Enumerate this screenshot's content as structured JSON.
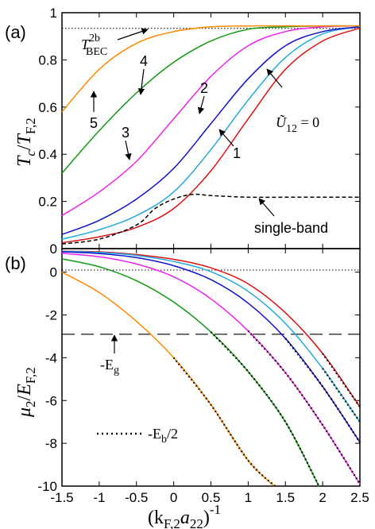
{
  "figure": {
    "panel_a_label": "(a)",
    "panel_b_label": "(b)",
    "ylabel_a_main": "T",
    "ylabel_a_sub1": "c",
    "ylabel_a_slash": "/",
    "ylabel_a_main2": "T",
    "ylabel_a_sub2": "F,2",
    "ylabel_b_main": "μ",
    "ylabel_b_sub1": "2",
    "ylabel_b_slash": "/",
    "ylabel_b_main2": "E",
    "ylabel_b_sub2": "F,2",
    "xlabel_open": "(k",
    "xlabel_sub1": "F,2",
    "xlabel_mid": "a",
    "xlabel_sub2": "22",
    "xlabel_close": ")",
    "xlabel_sup": "-1",
    "annot_tbec_main": "T",
    "annot_tbec_sup": "2b",
    "annot_tbec_sub": "BEC",
    "annot_u12_sym": "Ũ",
    "annot_u12_sub": "12",
    "annot_u12_eq": " = 0",
    "annot_singleband": "single-band",
    "annot_eg": "-E",
    "annot_eg_sub": "g",
    "annot_eb": "-E",
    "annot_eb_sub": "b",
    "annot_eb_tail": "/2",
    "curve_labels": [
      "1",
      "2",
      "3",
      "4",
      "5"
    ]
  },
  "colors": {
    "c0": "#dd1111",
    "c1": "#22aadd",
    "c2": "#1111cc",
    "c3": "#ee22ee",
    "c4": "#119911",
    "c5": "#ff8800",
    "singleband": "#000000"
  },
  "chart_data": [
    {
      "panel": "(a)",
      "type": "line",
      "ylabel": "Tc/TF,2",
      "xlim": [
        -1.5,
        2.5
      ],
      "ylim": [
        0,
        1
      ],
      "xticks": [
        "-1.5",
        "-1",
        "-0.5",
        "0",
        "0.5",
        "1",
        "1.5",
        "2",
        "2.5"
      ],
      "yticks": [
        "0",
        "0.2",
        "0.4",
        "0.6",
        "0.8",
        "1"
      ],
      "reference_line": {
        "label": "T2bBEC",
        "y": 0.944
      },
      "series": [
        {
          "name": "Ũ12 = 0",
          "color_key": "c0",
          "x": [
            -1.5,
            -1,
            -0.5,
            0,
            0.5,
            1,
            1.5,
            2,
            2.5
          ],
          "y": [
            0.025,
            0.05,
            0.09,
            0.17,
            0.33,
            0.55,
            0.76,
            0.88,
            0.935
          ]
        },
        {
          "name": "1",
          "color_key": "c1",
          "x": [
            -1.5,
            -1,
            -0.5,
            0,
            0.5,
            1,
            1.5,
            2,
            2.5
          ],
          "y": [
            0.04,
            0.08,
            0.14,
            0.24,
            0.42,
            0.63,
            0.81,
            0.91,
            0.94
          ]
        },
        {
          "name": "2",
          "color_key": "c2",
          "x": [
            -1.5,
            -1,
            -0.5,
            0,
            0.5,
            1,
            1.5,
            2,
            2.5
          ],
          "y": [
            0.06,
            0.12,
            0.21,
            0.34,
            0.53,
            0.72,
            0.86,
            0.92,
            0.94
          ]
        },
        {
          "name": "3",
          "color_key": "c3",
          "x": [
            -1.5,
            -1,
            -0.5,
            0,
            0.5,
            1,
            1.5,
            2,
            2.5
          ],
          "y": [
            0.14,
            0.24,
            0.37,
            0.55,
            0.73,
            0.86,
            0.92,
            0.94,
            0.944
          ]
        },
        {
          "name": "4",
          "color_key": "c4",
          "x": [
            -1.5,
            -1,
            -0.5,
            0,
            0.5,
            1,
            1.5,
            2,
            2.5
          ],
          "y": [
            0.32,
            0.5,
            0.66,
            0.79,
            0.88,
            0.93,
            0.94,
            0.944,
            0.944
          ]
        },
        {
          "name": "5",
          "color_key": "c5",
          "x": [
            -1.5,
            -1,
            -0.5,
            0,
            0.5,
            1,
            1.5,
            2,
            2.5
          ],
          "y": [
            0.58,
            0.76,
            0.87,
            0.92,
            0.94,
            0.944,
            0.944,
            0.944,
            0.944
          ]
        },
        {
          "name": "single-band",
          "color_key": "singleband",
          "dashed": true,
          "x": [
            -1.5,
            -1,
            -0.5,
            -0.25,
            0,
            0.25,
            0.5,
            1,
            1.5,
            2,
            2.5
          ],
          "y": [
            0.02,
            0.04,
            0.1,
            0.17,
            0.21,
            0.23,
            0.225,
            0.218,
            0.218,
            0.218,
            0.218
          ]
        }
      ]
    },
    {
      "panel": "(b)",
      "type": "line",
      "ylabel": "μ2/EF,2",
      "xlabel": "(kF,2a22)-1",
      "xlim": [
        -1.5,
        2.5
      ],
      "ylim": [
        -10,
        1.1
      ],
      "xticks": [
        "-1.5",
        "-1",
        "-0.5",
        "0",
        "0.5",
        "1",
        "1.5",
        "2",
        "2.5"
      ],
      "yticks": [
        "0",
        "-2",
        "-4",
        "-6",
        "-8",
        "-10"
      ],
      "reference_lines": [
        {
          "y": 0,
          "style": "dotted"
        },
        {
          "y": -3,
          "style": "dashed",
          "label": "-Eg"
        }
      ],
      "series": [
        {
          "name": "Ũ12 = 0",
          "color_key": "c0",
          "x": [
            -1.5,
            -1,
            -0.5,
            0,
            0.5,
            1,
            1.5,
            2,
            2.5
          ],
          "y": [
            0.98,
            0.95,
            0.82,
            0.6,
            0.2,
            -0.55,
            -1.9,
            -3.8,
            -6.3
          ]
        },
        {
          "name": "1",
          "color_key": "c1",
          "x": [
            -1.5,
            -1,
            -0.5,
            0,
            0.5,
            1,
            1.5,
            2,
            2.5
          ],
          "y": [
            0.97,
            0.92,
            0.78,
            0.5,
            0.02,
            -0.9,
            -2.4,
            -4.5,
            -7.0
          ]
        },
        {
          "name": "2",
          "color_key": "c2",
          "x": [
            -1.5,
            -1,
            -0.5,
            0,
            0.5,
            1,
            1.5,
            2,
            2.5
          ],
          "y": [
            0.95,
            0.87,
            0.68,
            0.3,
            -0.35,
            -1.45,
            -3.1,
            -5.35,
            -7.95
          ]
        },
        {
          "name": "3",
          "color_key": "c3",
          "x": [
            -1.5,
            -1,
            -0.5,
            0,
            0.5,
            1,
            1.5,
            2,
            2.5
          ],
          "y": [
            0.88,
            0.72,
            0.38,
            -0.22,
            -1.25,
            -2.75,
            -4.7,
            -7.15,
            -9.9
          ]
        },
        {
          "name": "4",
          "color_key": "c4",
          "x": [
            -1.5,
            -1,
            -0.5,
            0,
            0.5,
            1,
            1.5,
            1.95
          ],
          "y": [
            0.62,
            0.25,
            -0.4,
            -1.4,
            -2.8,
            -4.65,
            -7.0,
            -10.0
          ]
        },
        {
          "name": "5",
          "color_key": "c5",
          "x": [
            -1.5,
            -1,
            -0.5,
            0,
            0.5,
            1,
            1.35
          ],
          "y": [
            0.0,
            -0.95,
            -2.3,
            -4.0,
            -6.2,
            -8.8,
            -10.0
          ]
        },
        {
          "name": "-Eb/2",
          "color_key": "singleband",
          "dotted": true,
          "x": [
            0,
            0.5,
            1,
            1.36
          ],
          "y": [
            -4.0,
            -6.2,
            -8.8,
            -10.0
          ]
        },
        {
          "name": "-Eb/2",
          "color_key": "singleband",
          "dotted": true,
          "x": [
            0.5,
            1,
            1.5,
            1.95
          ],
          "y": [
            -2.8,
            -4.65,
            -7.0,
            -10.0
          ]
        },
        {
          "name": "-Eb/2",
          "color_key": "singleband",
          "dotted": true,
          "x": [
            1,
            1.5,
            2,
            2.5
          ],
          "y": [
            -2.75,
            -4.7,
            -7.15,
            -9.9
          ]
        },
        {
          "name": "-Eb/2",
          "color_key": "singleband",
          "dotted": true,
          "x": [
            1.5,
            2,
            2.5
          ],
          "y": [
            -3.1,
            -5.35,
            -7.95
          ]
        },
        {
          "name": "-Eb/2",
          "color_key": "singleband",
          "dotted": true,
          "x": [
            2,
            2.5
          ],
          "y": [
            -4.5,
            -7.0
          ]
        },
        {
          "name": "-Eb/2",
          "color_key": "singleband",
          "dotted": true,
          "x": [
            2,
            2.5
          ],
          "y": [
            -3.8,
            -6.3
          ]
        }
      ]
    }
  ]
}
